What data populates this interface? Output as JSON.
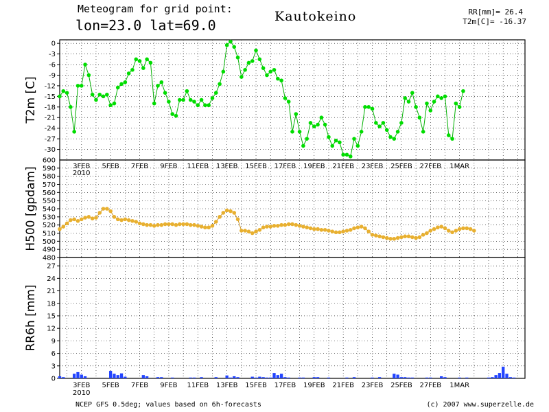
{
  "header": {
    "line1": "Meteogram for grid point:",
    "line2": "lon=23.0 lat=69.0",
    "station": "Kautokeino",
    "rr_label": "RR[mm]= 26.4",
    "t2_label": "T2m[C]= -16.37"
  },
  "footer": {
    "left": "NCEP GFS 0.5deg; values based on 6h-forecasts",
    "right": "(c) 2007 www.superzelle.de"
  },
  "colors": {
    "t2m": "#00dd00",
    "t2m_line": "#00b000",
    "h500": "#e8b030",
    "h500_line": "#c89020",
    "rr": "#2244ff"
  },
  "chart_data": [
    {
      "type": "line",
      "ylabel": "T2m [C]",
      "ylim": [
        -33,
        1
      ],
      "yticks": [
        0,
        -3,
        -6,
        -9,
        -12,
        -15,
        -18,
        -21,
        -24,
        -27,
        -30
      ],
      "extra_ytick": "600",
      "xlim": [
        0,
        128
      ],
      "x_ticks": [
        {
          "x": 6,
          "label": "3FEB"
        },
        {
          "x": 14,
          "label": "5FEB"
        },
        {
          "x": 22,
          "label": "7FEB"
        },
        {
          "x": 30,
          "label": "9FEB"
        },
        {
          "x": 38,
          "label": "11FEB"
        },
        {
          "x": 46,
          "label": "13FEB"
        },
        {
          "x": 54,
          "label": "15FEB"
        },
        {
          "x": 62,
          "label": "17FEB"
        },
        {
          "x": 70,
          "label": "19FEB"
        },
        {
          "x": 78,
          "label": "21FEB"
        },
        {
          "x": 86,
          "label": "23FEB"
        },
        {
          "x": 94,
          "label": "25FEB"
        },
        {
          "x": 102,
          "label": "27FEB"
        },
        {
          "x": 110,
          "label": "1MAR"
        }
      ],
      "year_label": "2010",
      "values": [
        -15,
        -13.5,
        -14,
        -18,
        -25,
        -12,
        -12,
        -6,
        -9,
        -14.5,
        -16,
        -14.5,
        -15,
        -14.5,
        -17.5,
        -17,
        -12.5,
        -11.5,
        -11,
        -8.5,
        -7.5,
        -4.5,
        -5,
        -7,
        -4.5,
        -5.5,
        -17,
        -12,
        -11,
        -14,
        -16.5,
        -20,
        -20.5,
        -16,
        -16,
        -13.5,
        -16,
        -16.5,
        -17.5,
        -16,
        -17.5,
        -17.5,
        -15.5,
        -14,
        -11.5,
        -8,
        -0.5,
        0.5,
        -1,
        -4,
        -9.5,
        -7.5,
        -5.5,
        -5,
        -2,
        -4.5,
        -7,
        -9,
        -8,
        -7.5,
        -10,
        -10.5,
        -15.5,
        -16.5,
        -25,
        -20,
        -25,
        -29,
        -27,
        -22.5,
        -23.5,
        -23,
        -21,
        -23,
        -26.5,
        -29,
        -27.5,
        -28,
        -31.5,
        -31.5,
        -32,
        -27,
        -29,
        -25,
        -18,
        -18,
        -18.5,
        -22.5,
        -23.5,
        -22.5,
        -24.5,
        -26.5,
        -27,
        -25,
        -22.5,
        -15.5,
        -16.5,
        -14,
        -18,
        -21,
        -25,
        -17,
        -19,
        -16.5,
        -15,
        -15.5,
        -15,
        -26,
        -27,
        -17,
        -18,
        -13.5
      ]
    },
    {
      "type": "line",
      "ylabel": "H500 [gpdam]",
      "ylim": [
        480,
        600
      ],
      "yticks": [
        590,
        580,
        570,
        560,
        550,
        540,
        530,
        520,
        510,
        500,
        490,
        480
      ],
      "values": [
        515,
        518,
        522,
        526,
        527,
        525,
        527,
        529,
        530,
        528,
        529,
        535,
        540,
        540,
        537,
        530,
        527,
        526,
        527,
        526,
        525,
        524,
        522,
        521,
        520,
        520,
        519,
        520,
        520,
        521,
        521,
        521,
        520,
        521,
        521,
        521,
        520,
        520,
        519,
        518,
        517,
        517,
        519,
        524,
        530,
        535,
        538,
        537,
        535,
        527,
        513,
        513,
        512,
        510,
        512,
        514,
        517,
        518,
        518,
        519,
        519,
        520,
        520,
        521,
        521,
        520,
        519,
        518,
        517,
        516,
        515,
        515,
        514,
        514,
        513,
        512,
        511,
        511,
        512,
        513,
        514,
        516,
        517,
        518,
        516,
        512,
        508,
        507,
        506,
        505,
        504,
        503,
        503,
        504,
        505,
        506,
        506,
        505,
        504,
        505,
        508,
        510,
        513,
        515,
        517,
        518,
        516,
        513,
        511,
        513,
        515,
        516,
        516,
        515,
        513
      ]
    },
    {
      "type": "bar",
      "ylabel": "RR6h [mm]",
      "ylim": [
        0,
        29
      ],
      "yticks": [
        27,
        24,
        21,
        18,
        15,
        12,
        9,
        6,
        3,
        0
      ],
      "values": [
        0.5,
        0.3,
        0,
        0,
        1.1,
        1.5,
        0.9,
        0.5,
        0,
        0,
        0,
        0,
        0,
        0,
        1.8,
        1.1,
        0.8,
        1.2,
        0.4,
        0,
        0,
        0,
        0,
        0.8,
        0.5,
        0,
        0,
        0.3,
        0.3,
        0,
        0,
        0.2,
        0,
        0,
        0,
        0,
        0.2,
        0.2,
        0,
        0.3,
        0,
        0,
        0,
        0.3,
        0,
        0,
        0.7,
        0.2,
        0.5,
        0.3,
        0,
        0,
        0,
        0.4,
        0.2,
        0.4,
        0.3,
        0.2,
        0.2,
        1.3,
        0.8,
        1.1,
        0.3,
        0.2,
        0,
        0,
        0.2,
        0.2,
        0,
        0,
        0.3,
        0.3,
        0,
        0,
        0.2,
        0,
        0,
        0,
        0,
        0.2,
        0,
        0.3,
        0,
        0,
        0,
        0,
        0.2,
        0,
        0.3,
        0,
        0,
        0,
        1.1,
        0.9,
        0.3,
        0.3,
        0.2,
        0.2,
        0,
        0,
        0,
        0.2,
        0.2,
        0,
        0,
        0.5,
        0.3,
        0,
        0,
        0,
        0.2,
        0,
        0.2,
        0,
        0,
        0,
        0,
        0,
        0.2,
        0.3,
        0.8,
        1.3,
        2.8,
        1.1,
        0.3,
        0.2,
        0,
        0,
        0
      ]
    }
  ]
}
